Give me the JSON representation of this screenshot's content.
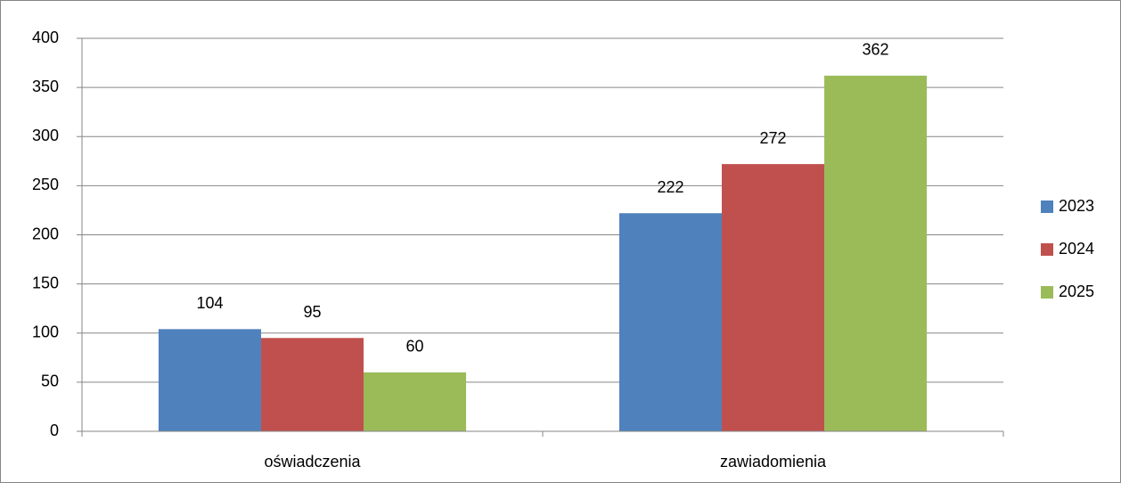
{
  "chart_data": {
    "type": "bar",
    "categories": [
      "oświadczenia",
      "zawiadomienia"
    ],
    "series": [
      {
        "name": "2023",
        "color": "#4f81bd",
        "values": [
          104,
          222
        ]
      },
      {
        "name": "2024",
        "color": "#c0504d",
        "values": [
          95,
          272
        ]
      },
      {
        "name": "2025",
        "color": "#9bbb59",
        "values": [
          60,
          362
        ]
      }
    ],
    "ylim": [
      0,
      400
    ],
    "yticks": [
      0,
      50,
      100,
      150,
      200,
      250,
      300,
      350,
      400
    ],
    "grid": true,
    "legend": "right"
  }
}
